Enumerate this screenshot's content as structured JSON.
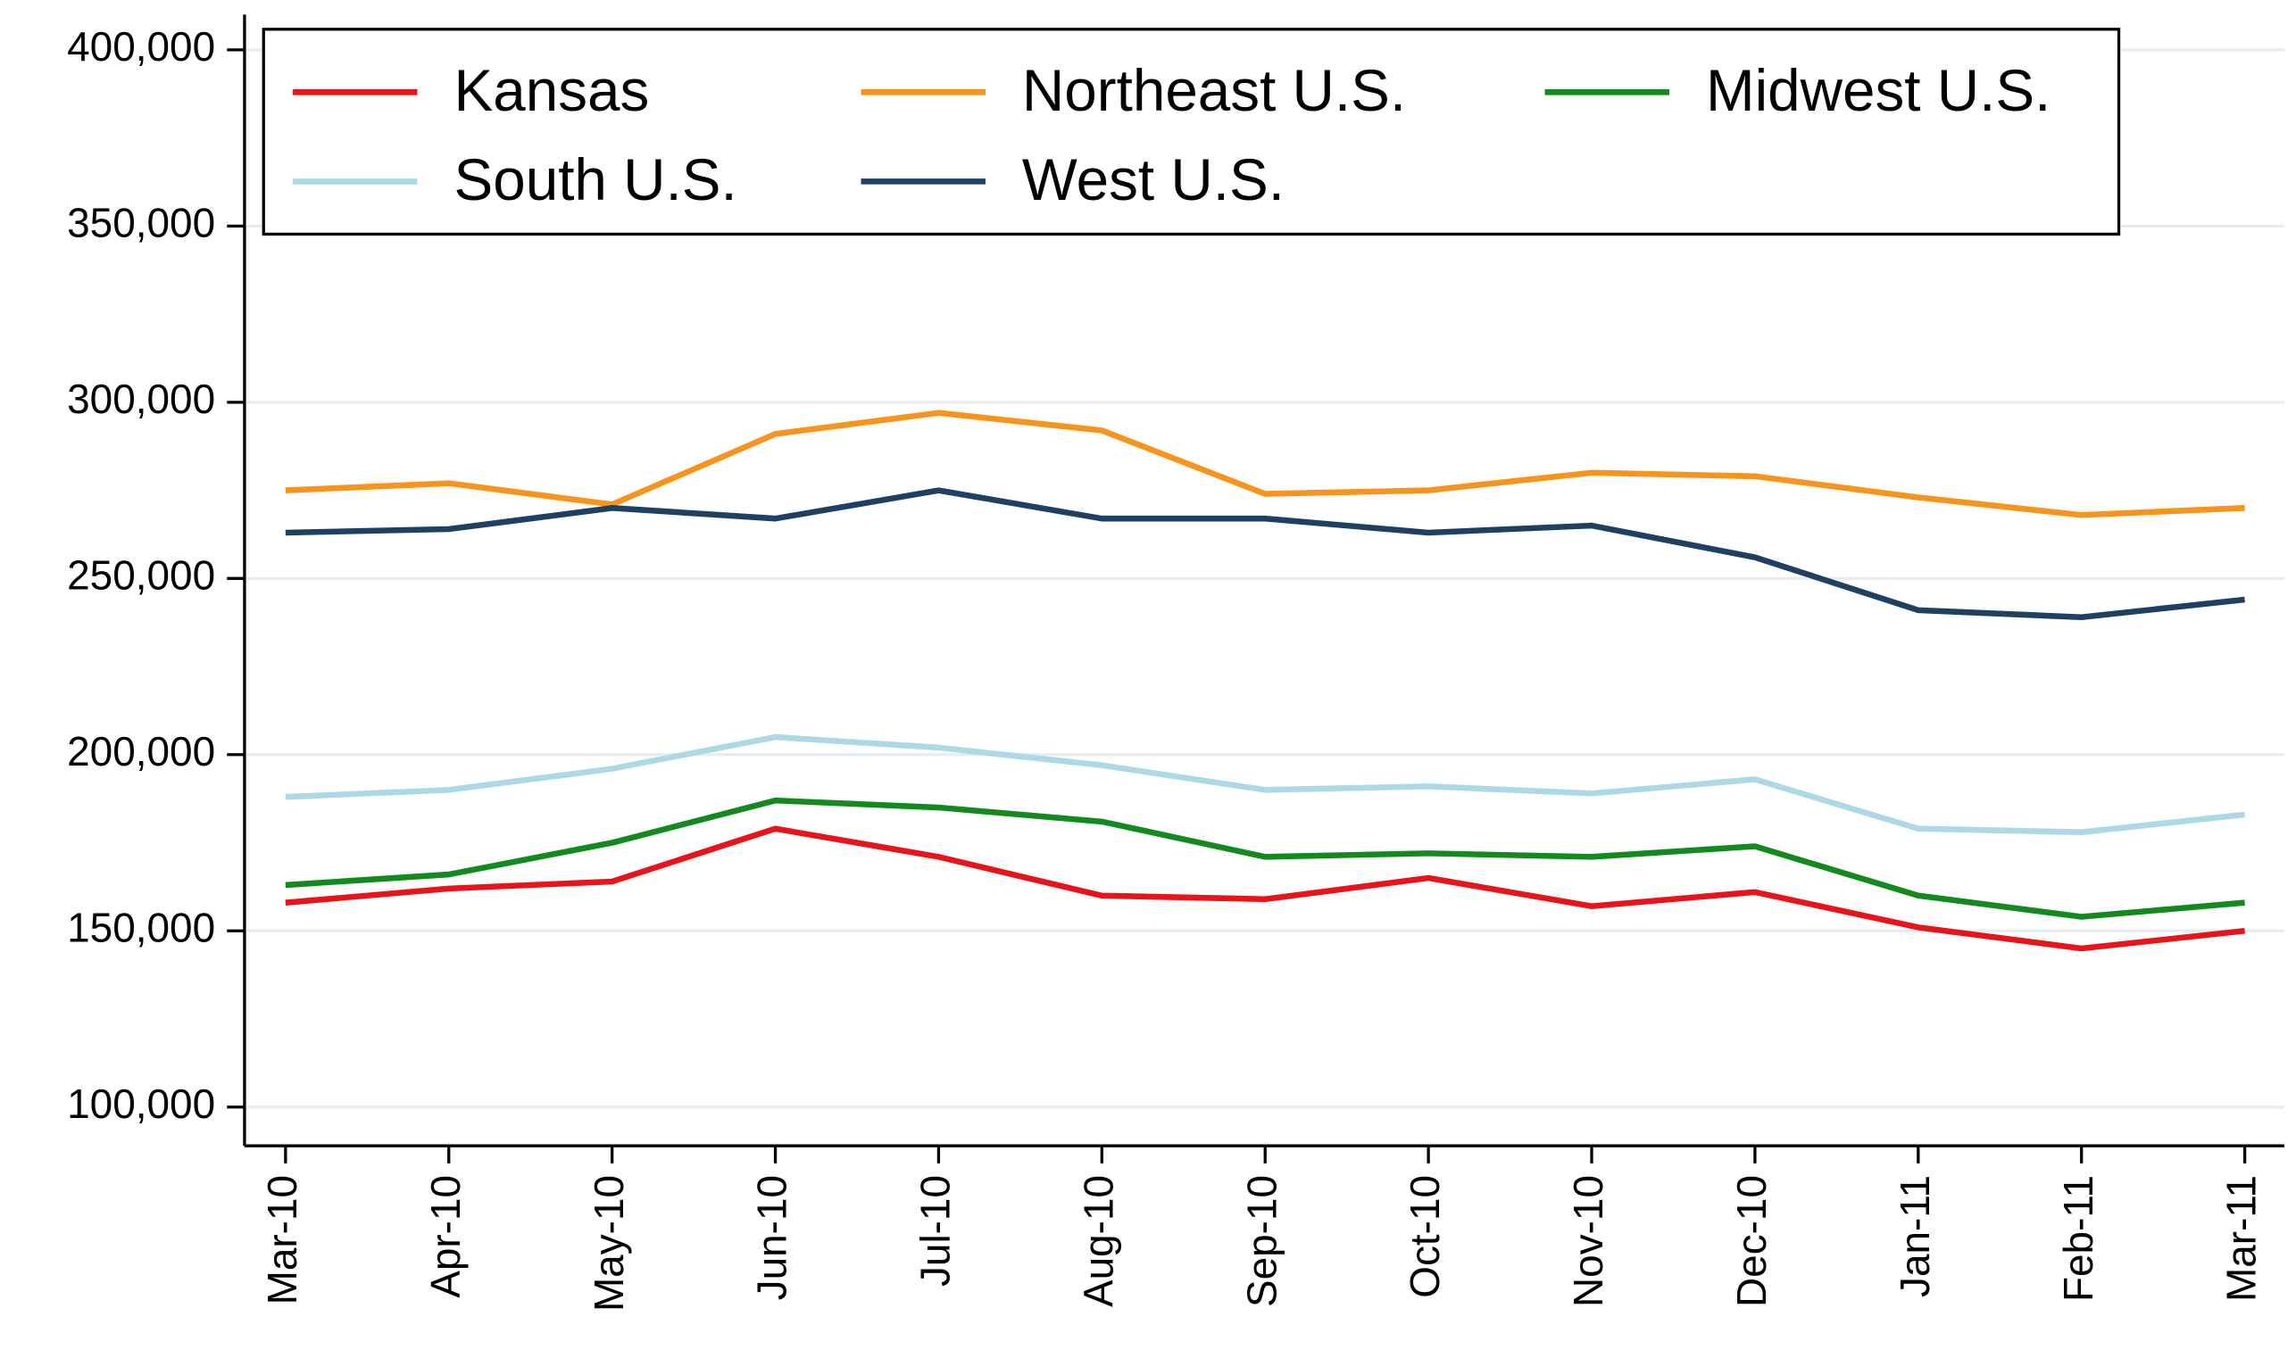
{
  "chart_data": {
    "type": "line",
    "categories": [
      "Mar-10",
      "Apr-10",
      "May-10",
      "Jun-10",
      "Jul-10",
      "Aug-10",
      "Sep-10",
      "Oct-10",
      "Nov-10",
      "Dec-10",
      "Jan-11",
      "Feb-11",
      "Mar-11"
    ],
    "series": [
      {
        "name": "Kansas",
        "color": "#e8141c",
        "values": [
          158000,
          162000,
          164000,
          179000,
          171000,
          160000,
          159000,
          165000,
          157000,
          161000,
          151000,
          145000,
          150000
        ]
      },
      {
        "name": "Northeast U.S.",
        "color": "#f7941d",
        "values": [
          275000,
          277000,
          271000,
          291000,
          297000,
          292000,
          274000,
          275000,
          280000,
          279000,
          273000,
          268000,
          270000
        ]
      },
      {
        "name": "Midwest U.S.",
        "color": "#138a1e",
        "values": [
          163000,
          166000,
          175000,
          187000,
          185000,
          181000,
          171000,
          172000,
          171000,
          174000,
          160000,
          154000,
          158000
        ]
      },
      {
        "name": "South U.S.",
        "color": "#add8e6",
        "values": [
          188000,
          190000,
          196000,
          205000,
          202000,
          197000,
          190000,
          191000,
          189000,
          193000,
          179000,
          178000,
          183000
        ]
      },
      {
        "name": "West U.S.",
        "color": "#1f3f63",
        "values": [
          263000,
          264000,
          270000,
          267000,
          275000,
          267000,
          267000,
          263000,
          265000,
          256000,
          241000,
          239000,
          244000
        ]
      }
    ],
    "ylim": [
      89000,
      410000
    ],
    "yticks": [
      {
        "value": 100000,
        "label": "100,000"
      },
      {
        "value": 150000,
        "label": "150,000"
      },
      {
        "value": 200000,
        "label": "200,000"
      },
      {
        "value": 250000,
        "label": "250,000"
      },
      {
        "value": 300000,
        "label": "300,000"
      },
      {
        "value": 350000,
        "label": "350,000"
      },
      {
        "value": 400000,
        "label": "400,000"
      }
    ],
    "grid": true,
    "legend": "top"
  }
}
